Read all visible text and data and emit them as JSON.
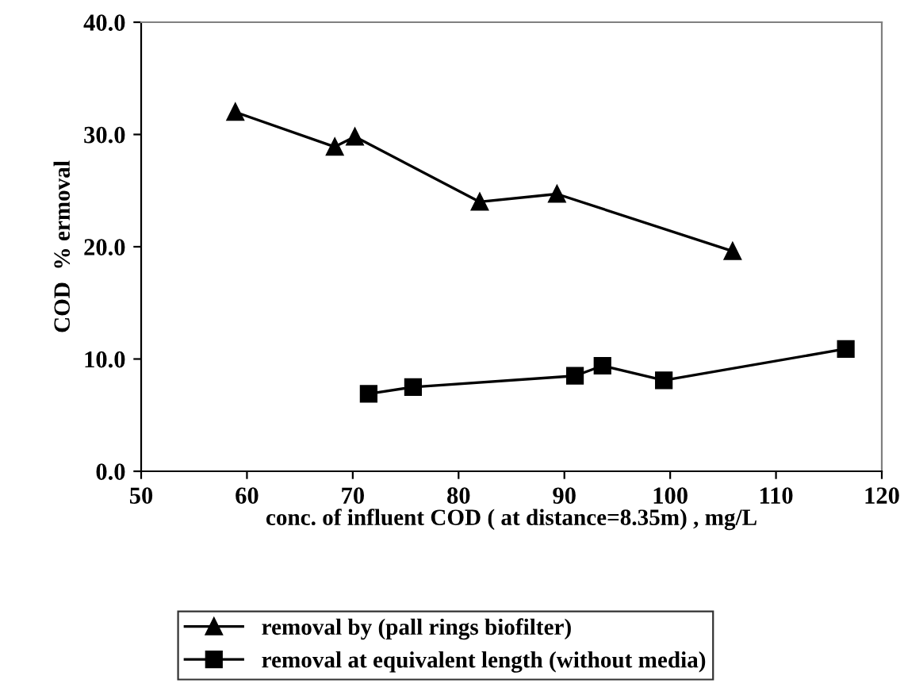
{
  "chart_data": {
    "type": "line",
    "xlabel": "conc. of influent COD ( at distance=8.35m) , mg/L",
    "ylabel": "COD  % ermoval",
    "series": [
      {
        "name": "removal by (pall rings biofilter)",
        "color": "#000000",
        "marker": "triangle",
        "x": [
          58.9,
          68.3,
          70.2,
          82.0,
          89.3,
          105.9
        ],
        "values": [
          32.0,
          28.9,
          29.8,
          24.0,
          24.7,
          19.6
        ]
      },
      {
        "name": "removal at equivalent length (without media)",
        "color": "#000000",
        "marker": "square",
        "x": [
          71.5,
          75.7,
          91.0,
          93.6,
          99.4,
          116.6
        ],
        "values": [
          6.9,
          7.5,
          8.5,
          9.4,
          8.1,
          10.9
        ]
      }
    ],
    "xlim": [
      50,
      120
    ],
    "xticks": [
      50,
      60,
      70,
      80,
      90,
      100,
      110,
      120
    ],
    "ylim": [
      0,
      40
    ],
    "yticks": [
      {
        "value": 0,
        "label": "0.0"
      },
      {
        "value": 10,
        "label": "10.0"
      },
      {
        "value": 20,
        "label": "20.0"
      },
      {
        "value": 30,
        "label": "30.0"
      },
      {
        "value": 40,
        "label": "40.0"
      }
    ],
    "grid": false,
    "legend": "bottom",
    "line_style": "solid"
  }
}
